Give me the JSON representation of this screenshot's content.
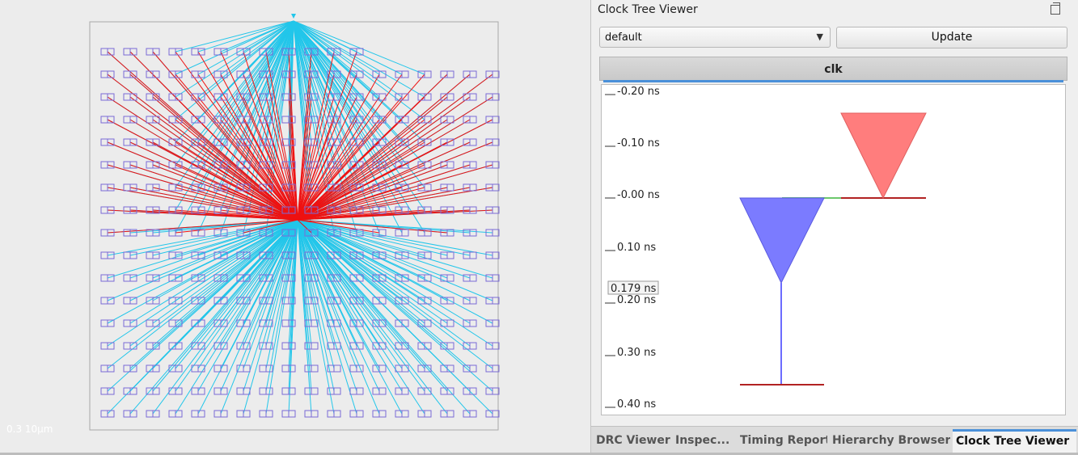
{
  "layout_view": {
    "scale_label": "0.3  10μm",
    "colors": {
      "pin": "#7a6ad6",
      "net_cyan": "#22c6ea",
      "net_red": "#ee1111",
      "die": "#a9a9a9"
    }
  },
  "panel": {
    "title": "Clock Tree Viewer",
    "corner_select": {
      "value": "default"
    },
    "update_label": "Update",
    "clock_tab": "clk",
    "axis_ticks": [
      "-0.20 ns",
      "-0.10 ns",
      "-0.00 ns",
      "0.10 ns",
      "0.20 ns",
      "0.30 ns",
      "0.40 ns"
    ],
    "hover_value": "0.179 ns",
    "colors": {
      "root_buffer": "#7b7bff",
      "clock_source": "#ff7d7d",
      "wire_green": "#6cc86c",
      "sink_line": "#b22222"
    }
  },
  "bottom_tabs": [
    "DRC Viewer",
    "Inspec...",
    "Timing Report",
    "Hierarchy Browser",
    "Clock Tree Viewer"
  ]
}
